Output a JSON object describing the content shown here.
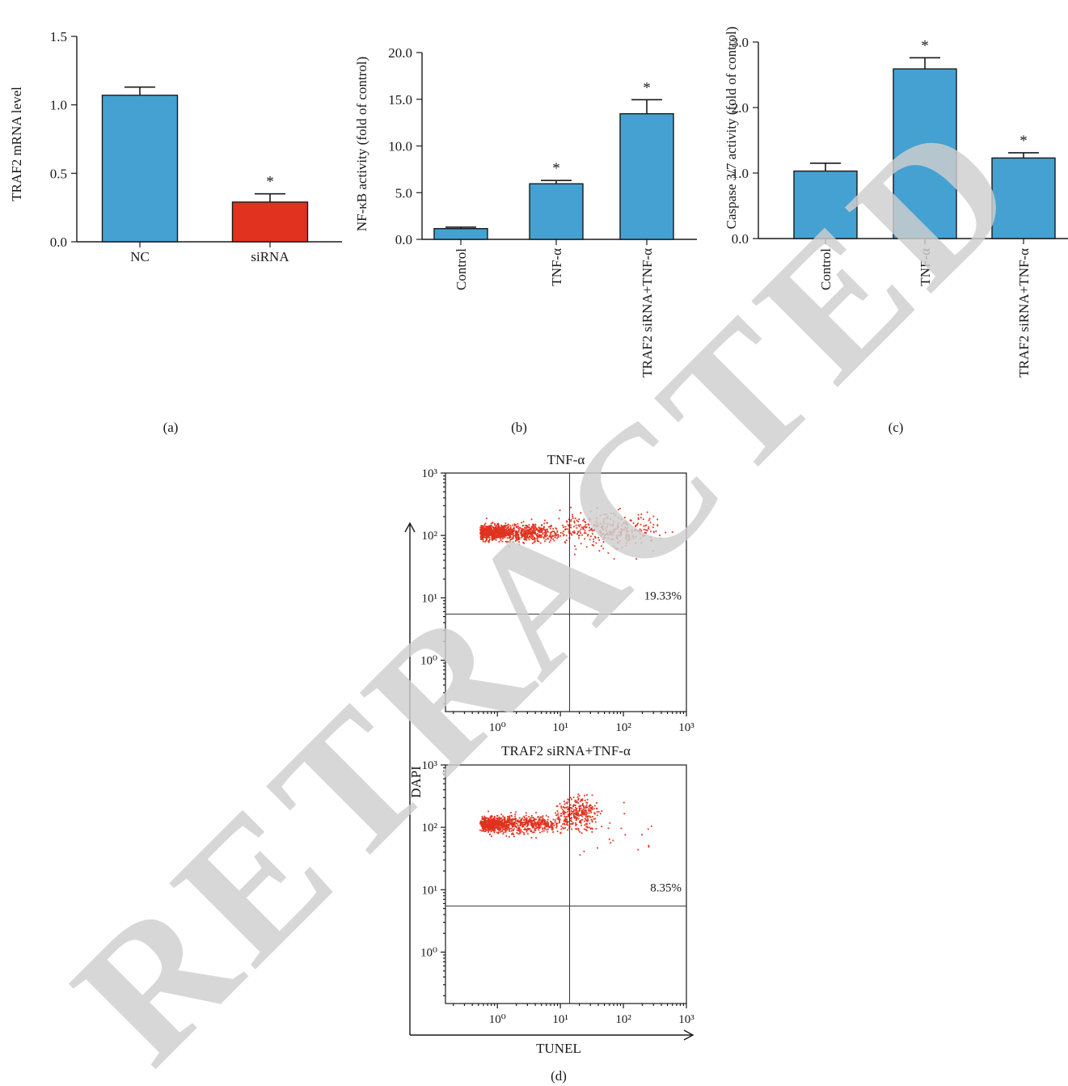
{
  "chart_data": [
    {
      "panel": "(a)",
      "type": "bar",
      "categories": [
        "NC",
        "siRNA"
      ],
      "values": [
        1.07,
        0.29
      ],
      "errors": [
        0.06,
        0.06
      ],
      "significant": [
        "",
        "*"
      ],
      "colors": [
        "#44a1d1",
        "#e0321f"
      ],
      "ylabel": "TRAF2 mRNA level",
      "ylim": [
        0,
        1.5
      ],
      "yticks": [
        "0.0",
        "0.5",
        "1.0",
        "1.5"
      ],
      "tick_values": [
        0,
        0.5,
        1.0,
        1.5
      ],
      "rotate_x_labels": false
    },
    {
      "panel": "(b)",
      "type": "bar",
      "categories": [
        "Control",
        "TNF-α",
        "TRAF2 siRNA+TNF-α"
      ],
      "values": [
        1.15,
        5.95,
        13.45
      ],
      "errors": [
        0.15,
        0.35,
        1.5
      ],
      "significant": [
        "",
        "*",
        "*"
      ],
      "colors": [
        "#44a1d1",
        "#44a1d1",
        "#44a1d1"
      ],
      "ylabel": "NF-κB activity (fold of control)",
      "ylim": [
        0,
        20
      ],
      "yticks": [
        "0.0",
        "5.0",
        "10.0",
        "15.0",
        "20.0"
      ],
      "tick_values": [
        0,
        5,
        10,
        15,
        20
      ],
      "rotate_x_labels": true
    },
    {
      "panel": "(c)",
      "type": "bar",
      "categories": [
        "Control",
        "TNF-α",
        "TRAF2 siRNA+TNF-α"
      ],
      "values": [
        1.03,
        2.59,
        1.23
      ],
      "errors": [
        0.12,
        0.17,
        0.08
      ],
      "significant": [
        "",
        "*",
        "*"
      ],
      "colors": [
        "#44a1d1",
        "#44a1d1",
        "#44a1d1"
      ],
      "ylabel": "Caspase 3/7 activity (fold of control)",
      "ylim": [
        0,
        3.0
      ],
      "yticks": [
        "0.0",
        "1.0",
        "2.0",
        "3.0"
      ],
      "tick_values": [
        0,
        1,
        2,
        3
      ],
      "rotate_x_labels": true
    },
    {
      "panel": "(d)",
      "type": "scatter",
      "xlabel": "TUNEL",
      "ylabel": "DAPI",
      "x_scale": "log",
      "y_scale": "log",
      "xlim": [
        0.15,
        1000
      ],
      "ylim": [
        0.15,
        1000
      ],
      "tick_labels": [
        "10⁰",
        "10¹",
        "10²",
        "10³"
      ],
      "gate": {
        "x": 14,
        "y": 5.5
      },
      "plots": [
        {
          "title": "TNF-α",
          "upper_right_percent": "19.33%"
        },
        {
          "title": "TRAF2 siRNA+TNF-α",
          "upper_right_percent": "8.35%"
        }
      ]
    }
  ],
  "panel_labels": [
    "(a)",
    "(b)",
    "(c)",
    "(d)"
  ],
  "watermark": "RETRACTED"
}
